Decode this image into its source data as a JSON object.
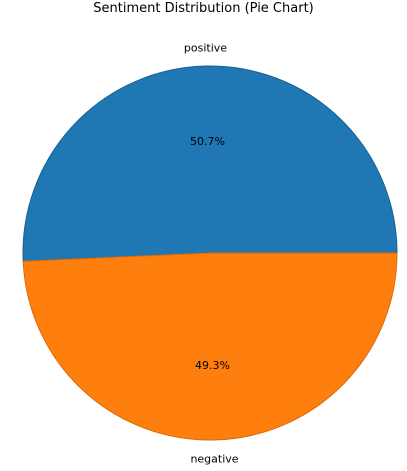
{
  "chart_data": {
    "type": "pie",
    "title": "Sentiment Distribution (Pie Chart)",
    "slices": [
      {
        "label": "positive",
        "value": 50.7,
        "pct_label": "50.7%",
        "color": "#1f77b4",
        "edge": "#1a5f8f"
      },
      {
        "label": "negative",
        "value": 49.3,
        "pct_label": "49.3%",
        "color": "#ff7f0e",
        "edge": "#d9690a"
      }
    ],
    "start_angle_deg": 0,
    "direction": "counterclockwise",
    "legend": "none"
  }
}
